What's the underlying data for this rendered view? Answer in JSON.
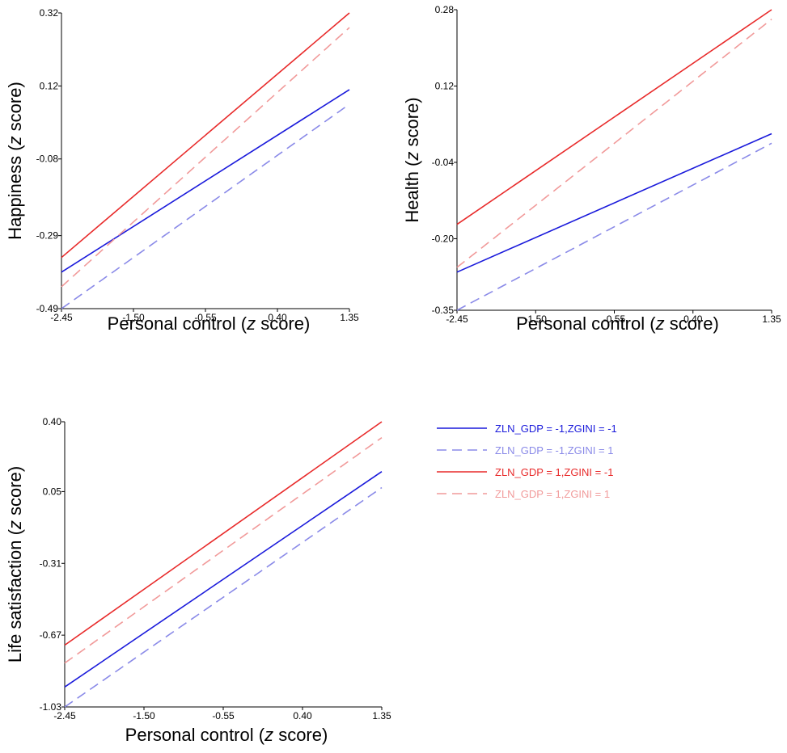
{
  "line_styles": {
    "solid_blue": "#1a1adb",
    "dashed_blue": "#8a8ae8",
    "solid_red": "#e82a2a",
    "dashed_red": "#f19a9a"
  },
  "legend": {
    "items": [
      {
        "label": "ZLN_GDP = -1,ZGINI = -1",
        "color": "#1a1adb",
        "dashed": false
      },
      {
        "label": "ZLN_GDP = -1,ZGINI = 1",
        "color": "#8a8ae8",
        "dashed": true
      },
      {
        "label": "ZLN_GDP = 1,ZGINI = -1",
        "color": "#e82a2a",
        "dashed": false
      },
      {
        "label": "ZLN_GDP = 1,ZGINI = 1",
        "color": "#f19a9a",
        "dashed": true
      }
    ]
  },
  "chart_data": [
    {
      "type": "line",
      "title": "",
      "xlabel": {
        "pre": "Personal control (",
        "italic": "z",
        "post": " score)"
      },
      "ylabel": {
        "pre": "Happiness (",
        "italic": "z",
        "post": " score)"
      },
      "xlim": [
        -2.45,
        1.35
      ],
      "ylim": [
        -0.49,
        0.32
      ],
      "xticks": [
        "-2.45",
        "-1.50",
        "-0.55",
        "0.40",
        "1.35"
      ],
      "yticks": [
        "-0.49",
        "-0.29",
        "-0.08",
        "0.12",
        "0.32"
      ],
      "x": [
        -2.45,
        1.35
      ],
      "series": [
        {
          "name": "ZLN_GDP = -1,ZGINI = -1",
          "values": [
            -0.39,
            0.11
          ]
        },
        {
          "name": "ZLN_GDP = -1,ZGINI = 1",
          "values": [
            -0.49,
            0.07
          ]
        },
        {
          "name": "ZLN_GDP = 1,ZGINI = -1",
          "values": [
            -0.35,
            0.32
          ]
        },
        {
          "name": "ZLN_GDP = 1,ZGINI = 1",
          "values": [
            -0.43,
            0.28
          ]
        }
      ]
    },
    {
      "type": "line",
      "title": "",
      "xlabel": {
        "pre": "Personal control (",
        "italic": "z",
        "post": " score)"
      },
      "ylabel": {
        "pre": "Health (",
        "italic": "z",
        "post": " score)"
      },
      "xlim": [
        -2.45,
        1.35
      ],
      "ylim": [
        -0.35,
        0.28
      ],
      "xticks": [
        "-2.45",
        "-1.50",
        "-0.55",
        "0.40",
        "1.35"
      ],
      "yticks": [
        "-0.35",
        "-0.20",
        "-0.04",
        "0.12",
        "0.28"
      ],
      "x": [
        -2.45,
        1.35
      ],
      "series": [
        {
          "name": "ZLN_GDP = -1,ZGINI = -1",
          "values": [
            -0.27,
            0.02
          ]
        },
        {
          "name": "ZLN_GDP = -1,ZGINI = 1",
          "values": [
            -0.35,
            0.0
          ]
        },
        {
          "name": "ZLN_GDP = 1,ZGINI = -1",
          "values": [
            -0.17,
            0.28
          ]
        },
        {
          "name": "ZLN_GDP = 1,ZGINI = 1",
          "values": [
            -0.26,
            0.26
          ]
        }
      ]
    },
    {
      "type": "line",
      "title": "",
      "xlabel": {
        "pre": "Personal control (",
        "italic": "z",
        "post": " score)"
      },
      "ylabel": {
        "pre": "Life satisfaction (",
        "italic": "z",
        "post": " score)"
      },
      "xlim": [
        -2.45,
        1.35
      ],
      "ylim": [
        -1.03,
        0.4
      ],
      "xticks": [
        "-2.45",
        "-1.50",
        "-0.55",
        "0.40",
        "1.35"
      ],
      "yticks": [
        "-1.03",
        "-0.67",
        "-0.31",
        "0.05",
        "0.40"
      ],
      "x": [
        -2.45,
        1.35
      ],
      "series": [
        {
          "name": "ZLN_GDP = -1,ZGINI = -1",
          "values": [
            -0.93,
            0.15
          ]
        },
        {
          "name": "ZLN_GDP = -1,ZGINI = 1",
          "values": [
            -1.03,
            0.07
          ]
        },
        {
          "name": "ZLN_GDP = 1,ZGINI = -1",
          "values": [
            -0.72,
            0.4
          ]
        },
        {
          "name": "ZLN_GDP = 1,ZGINI = 1",
          "values": [
            -0.81,
            0.32
          ]
        }
      ]
    }
  ]
}
